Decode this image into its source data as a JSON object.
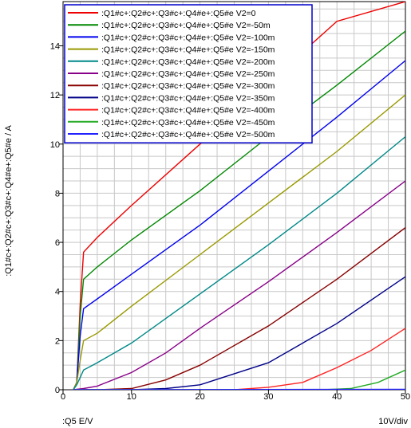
{
  "chart_data": {
    "type": "line",
    "ylabel": ":Q1#c+:Q2#c+:Q3#c+:Q4#e+:Q5#e / A",
    "xlabel": ":Q5  E/V",
    "x_scale_note": "10V/div",
    "xlim": [
      0,
      50
    ],
    "ylim": [
      0,
      15.8
    ],
    "x_ticks": [
      0,
      10,
      20,
      30,
      40,
      50
    ],
    "y_ticks": [
      0,
      2,
      4,
      6,
      8,
      10,
      12,
      14
    ],
    "grid": true,
    "legend_position": "top-left",
    "series": [
      {
        "name": ":Q1#c+:Q2#c+:Q3#c+:Q4#e+:Q5#e V2=0",
        "color": "#ee0000",
        "points": [
          [
            1.5,
            0
          ],
          [
            2,
            0.3
          ],
          [
            2.5,
            3.5
          ],
          [
            3,
            5.6
          ],
          [
            5,
            6.2
          ],
          [
            10,
            7.5
          ],
          [
            20,
            10
          ],
          [
            30,
            12.5
          ],
          [
            40,
            15
          ],
          [
            50,
            15.8
          ]
        ]
      },
      {
        "name": ":Q1#c+:Q2#c+:Q3#c+:Q4#e+:Q5#e V2=-50m",
        "color": "#008800",
        "points": [
          [
            1.5,
            0
          ],
          [
            2,
            0.3
          ],
          [
            2.5,
            3
          ],
          [
            3,
            4.5
          ],
          [
            5,
            5
          ],
          [
            10,
            6.1
          ],
          [
            20,
            8.1
          ],
          [
            30,
            10.3
          ],
          [
            40,
            12.4
          ],
          [
            50,
            14.6
          ]
        ]
      },
      {
        "name": ":Q1#c+:Q2#c+:Q3#c+:Q4#e+:Q5#e V2=-100m",
        "color": "#0000ee",
        "points": [
          [
            1.5,
            0
          ],
          [
            2,
            0.3
          ],
          [
            2.5,
            2.2
          ],
          [
            3,
            3.3
          ],
          [
            5,
            3.7
          ],
          [
            10,
            4.7
          ],
          [
            20,
            6.7
          ],
          [
            30,
            8.9
          ],
          [
            40,
            11.1
          ],
          [
            50,
            13.4
          ]
        ]
      },
      {
        "name": ":Q1#c+:Q2#c+:Q3#c+:Q4#e+:Q5#e V2=-150m",
        "color": "#999900",
        "points": [
          [
            1.5,
            0
          ],
          [
            2,
            0.3
          ],
          [
            2.5,
            1.2
          ],
          [
            3,
            2
          ],
          [
            5,
            2.3
          ],
          [
            10,
            3.4
          ],
          [
            20,
            5.5
          ],
          [
            30,
            7.6
          ],
          [
            40,
            9.7
          ],
          [
            50,
            12
          ]
        ]
      },
      {
        "name": ":Q1#c+:Q2#c+:Q3#c+:Q4#e+:Q5#e V2=-200m",
        "color": "#008888",
        "points": [
          [
            1.5,
            0
          ],
          [
            2,
            0.2
          ],
          [
            2.5,
            0.5
          ],
          [
            3,
            0.8
          ],
          [
            5,
            1.1
          ],
          [
            10,
            1.9
          ],
          [
            20,
            3.9
          ],
          [
            30,
            5.9
          ],
          [
            40,
            8
          ],
          [
            50,
            10.3
          ]
        ]
      },
      {
        "name": ":Q1#c+:Q2#c+:Q3#c+:Q4#e+:Q5#e V2=-250m",
        "color": "#880088",
        "points": [
          [
            1.5,
            0
          ],
          [
            3,
            0.05
          ],
          [
            5,
            0.15
          ],
          [
            10,
            0.7
          ],
          [
            15,
            1.5
          ],
          [
            20,
            2.5
          ],
          [
            30,
            4.4
          ],
          [
            40,
            6.4
          ],
          [
            50,
            8.5
          ]
        ]
      },
      {
        "name": ":Q1#c+:Q2#c+:Q3#c+:Q4#e+:Q5#e V2=-300m",
        "color": "#880000",
        "points": [
          [
            1.5,
            0
          ],
          [
            5,
            0
          ],
          [
            10,
            0.05
          ],
          [
            15,
            0.4
          ],
          [
            20,
            1
          ],
          [
            30,
            2.6
          ],
          [
            40,
            4.5
          ],
          [
            50,
            6.6
          ]
        ]
      },
      {
        "name": ":Q1#c+:Q2#c+:Q3#c+:Q4#e+:Q5#e V2=-350m",
        "color": "#000088",
        "points": [
          [
            1.5,
            0
          ],
          [
            10,
            0
          ],
          [
            15,
            0.05
          ],
          [
            20,
            0.2
          ],
          [
            30,
            1.1
          ],
          [
            40,
            2.7
          ],
          [
            50,
            4.6
          ]
        ]
      },
      {
        "name": ":Q1#c+:Q2#c+:Q3#c+:Q4#e+:Q5#e V2=-400m",
        "color": "#ff2222",
        "points": [
          [
            1.5,
            0
          ],
          [
            25,
            0
          ],
          [
            30,
            0.1
          ],
          [
            35,
            0.3
          ],
          [
            40,
            0.9
          ],
          [
            45,
            1.6
          ],
          [
            50,
            2.5
          ]
        ]
      },
      {
        "name": ":Q1#c+:Q2#c+:Q3#c+:Q4#e+:Q5#e V2=-450m",
        "color": "#22aa22",
        "points": [
          [
            1.5,
            0
          ],
          [
            38,
            0
          ],
          [
            42,
            0.05
          ],
          [
            46,
            0.3
          ],
          [
            50,
            0.8
          ]
        ]
      },
      {
        "name": ":Q1#c+:Q2#c+:Q3#c+:Q4#e+:Q5#e V2=-500m",
        "color": "#2222ff",
        "points": [
          [
            1.5,
            0
          ],
          [
            50,
            0.02
          ]
        ]
      }
    ]
  }
}
